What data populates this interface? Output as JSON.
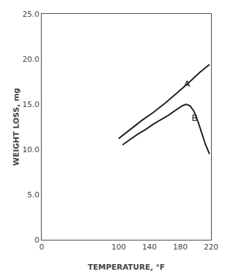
{
  "chart_data": {
    "type": "line",
    "xlabel": "TEMPERATURE, °F",
    "ylabel": "WEIGHT LOSS, mg",
    "xlim": [
      0,
      220
    ],
    "xticks": [
      0,
      100,
      140,
      180,
      220
    ],
    "ylim": [
      0,
      25.0
    ],
    "yticks": [
      0,
      {
        "value": 5.0,
        "label": "5.0"
      },
      {
        "value": 10.0,
        "label": "10.0"
      },
      {
        "value": 15.0,
        "label": "15.0"
      },
      {
        "value": 20.0,
        "label": "20.0"
      },
      {
        "value": 25.0,
        "label": "25.0"
      }
    ],
    "grid": false,
    "series": [
      {
        "color": "#1a1a1a",
        "x": [
          100,
          115,
          130,
          145,
          160,
          175,
          190,
          205,
          218
        ],
        "values": [
          11.2,
          12.2,
          13.2,
          14.1,
          15.1,
          16.2,
          17.3,
          18.5,
          19.4
        ]
      },
      {
        "color": "#1a1a1a",
        "x": [
          105,
          115,
          125,
          135,
          145,
          155,
          165,
          175,
          183,
          188,
          193,
          198,
          203,
          208,
          213,
          218
        ],
        "values": [
          10.5,
          11.1,
          11.7,
          12.2,
          12.8,
          13.3,
          13.8,
          14.4,
          14.85,
          15.0,
          14.8,
          14.2,
          13.1,
          11.8,
          10.5,
          9.5
        ]
      }
    ],
    "annotations": [
      {
        "text": "A",
        "x": 183,
        "y": 17.3
      },
      {
        "text": "B",
        "x": 193,
        "y": 13.5
      }
    ]
  }
}
